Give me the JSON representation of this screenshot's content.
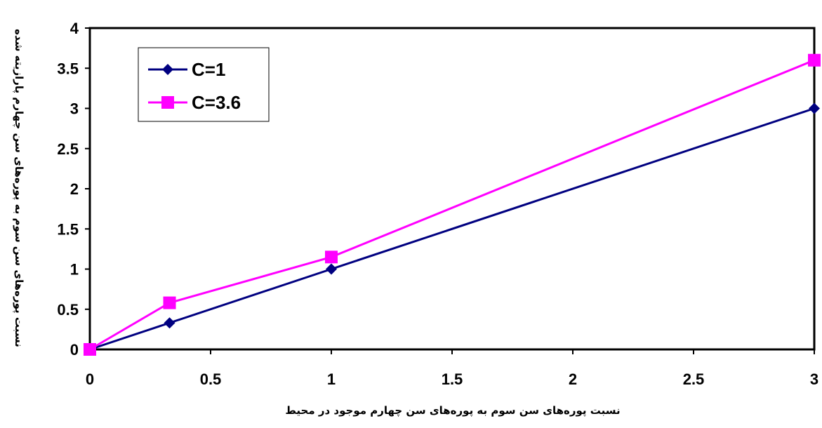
{
  "chart_data": {
    "type": "line",
    "xlabel": "نسبت پوره‌های سن سوم به پوره‌های سن چهارم موجود در محیط",
    "ylabel": "نسبت پوره‌های سن سوم به پوره‌های سن چهارم پارازیته شده",
    "xlim": [
      0,
      3
    ],
    "ylim": [
      0,
      4
    ],
    "x_ticks": [
      "0",
      "0.5",
      "1",
      "1.5",
      "2",
      "2.5",
      "3"
    ],
    "y_ticks": [
      "0",
      "0.5",
      "1",
      "1.5",
      "2",
      "2.5",
      "3",
      "3.5",
      "4"
    ],
    "grid": false,
    "legend_position": "top-left",
    "series": [
      {
        "name": "C=1",
        "color": "#000080",
        "marker": "diamond",
        "x": [
          0,
          0.33,
          1,
          3
        ],
        "y": [
          0,
          0.33,
          1,
          3
        ]
      },
      {
        "name": "C=3.6",
        "color": "#ff00ff",
        "marker": "square",
        "x": [
          0,
          0.33,
          1,
          3
        ],
        "y": [
          0,
          0.58,
          1.15,
          3.6
        ]
      }
    ]
  }
}
